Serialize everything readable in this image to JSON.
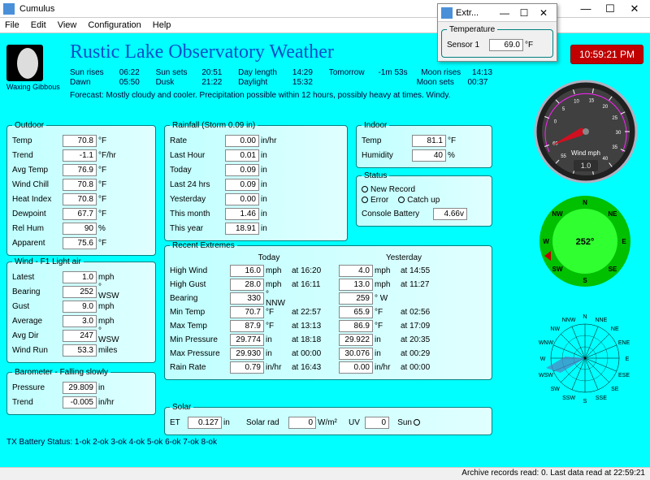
{
  "window": {
    "title": "Cumulus"
  },
  "menu": [
    "File",
    "Edit",
    "View",
    "Configuration",
    "Help"
  ],
  "header": {
    "title": "Rustic Lake Observatory Weather",
    "moon_phase": "Waxing Gibbous",
    "sun": {
      "rises_lbl": "Sun rises",
      "rises": "06:22",
      "sets_lbl": "Sun sets",
      "sets": "20:51",
      "dawn_lbl": "Dawn",
      "dawn": "05:50",
      "dusk_lbl": "Dusk",
      "dusk": "21:22",
      "daylen_lbl": "Day length",
      "daylen": "14:29",
      "daylight_lbl": "Daylight",
      "daylight": "15:32",
      "tomorrow_lbl": "Tomorrow",
      "tomorrow": "-1m 53s",
      "moonrises_lbl": "Moon rises",
      "moonrises": "14:13",
      "moonsets_lbl": "Moon sets",
      "moonsets": "00:37"
    },
    "forecast_lbl": "Forecast:",
    "forecast": "Mostly cloudy and cooler. Precipitation possible within 12 hours, possibly heavy at times. Windy.",
    "clock": "10:59:21 PM"
  },
  "outdoor": {
    "legend": "Outdoor",
    "rows": [
      {
        "lbl": "Temp",
        "val": "70.8",
        "unit": "°F"
      },
      {
        "lbl": "Trend",
        "val": "-1.1",
        "unit": "°F/hr"
      },
      {
        "lbl": "Avg Temp",
        "val": "76.9",
        "unit": "°F"
      },
      {
        "lbl": "Wind Chill",
        "val": "70.8",
        "unit": "°F"
      },
      {
        "lbl": "Heat Index",
        "val": "70.8",
        "unit": "°F"
      },
      {
        "lbl": "Dewpoint",
        "val": "67.7",
        "unit": "°F"
      },
      {
        "lbl": "Rel Hum",
        "val": "90",
        "unit": "%"
      },
      {
        "lbl": "Apparent",
        "val": "75.6",
        "unit": "°F"
      }
    ]
  },
  "wind": {
    "legend": "Wind - F1 Light air",
    "rows": [
      {
        "lbl": "Latest",
        "val": "1.0",
        "unit": "mph"
      },
      {
        "lbl": "Bearing",
        "val": "252",
        "unit": "° WSW"
      },
      {
        "lbl": "Gust",
        "val": "9.0",
        "unit": "mph"
      },
      {
        "lbl": "Average",
        "val": "3.0",
        "unit": "mph"
      },
      {
        "lbl": "Avg Dir",
        "val": "247",
        "unit": "° WSW"
      },
      {
        "lbl": "Wind Run",
        "val": "53.3",
        "unit": "miles"
      }
    ]
  },
  "barometer": {
    "legend": "Barometer - Falling slowly",
    "rows": [
      {
        "lbl": "Pressure",
        "val": "29.809",
        "unit": "in"
      },
      {
        "lbl": "Trend",
        "val": "-0.005",
        "unit": "in/hr"
      }
    ]
  },
  "rainfall": {
    "legend": "Rainfall (Storm 0.09 in)",
    "rows": [
      {
        "lbl": "Rate",
        "val": "0.00",
        "unit": "in/hr"
      },
      {
        "lbl": "Last Hour",
        "val": "0.01",
        "unit": "in"
      },
      {
        "lbl": "Today",
        "val": "0.09",
        "unit": "in"
      },
      {
        "lbl": "Last 24 hrs",
        "val": "0.09",
        "unit": "in"
      },
      {
        "lbl": "Yesterday",
        "val": "0.00",
        "unit": "in"
      },
      {
        "lbl": "This month",
        "val": "1.46",
        "unit": "in"
      },
      {
        "lbl": "This year",
        "val": "18.91",
        "unit": "in"
      }
    ]
  },
  "indoor": {
    "legend": "Indoor",
    "rows": [
      {
        "lbl": "Temp",
        "val": "81.1",
        "unit": "°F"
      },
      {
        "lbl": "Humidity",
        "val": "40",
        "unit": "%"
      }
    ]
  },
  "status": {
    "legend": "Status",
    "new_record": "New Record",
    "error": "Error",
    "catchup": "Catch up",
    "battery_lbl": "Console Battery",
    "battery_val": "4.66v"
  },
  "extremes": {
    "legend": "Recent Extremes",
    "today_hdr": "Today",
    "yest_hdr": "Yesterday",
    "rows": [
      {
        "nm": "High Wind",
        "tv": "16.0",
        "tu": "mph",
        "tt": "at 16:20",
        "yv": "4.0",
        "yu": "mph",
        "yt": "at 14:55"
      },
      {
        "nm": "High Gust",
        "tv": "28.0",
        "tu": "mph",
        "tt": "at 16:11",
        "yv": "13.0",
        "yu": "mph",
        "yt": "at 11:27"
      },
      {
        "nm": "Bearing",
        "tv": "330",
        "tu": "° NNW",
        "tt": "",
        "yv": "259",
        "yu": "° W",
        "yt": ""
      },
      {
        "nm": "Min Temp",
        "tv": "70.7",
        "tu": "°F",
        "tt": "at 22:57",
        "yv": "65.9",
        "yu": "°F",
        "yt": "at 02:56"
      },
      {
        "nm": "Max Temp",
        "tv": "87.9",
        "tu": "°F",
        "tt": "at 13:13",
        "yv": "86.9",
        "yu": "°F",
        "yt": "at 17:09"
      },
      {
        "nm": "Min Pressure",
        "tv": "29.774",
        "tu": "in",
        "tt": "at 18:18",
        "yv": "29.922",
        "yu": "in",
        "yt": "at 20:35"
      },
      {
        "nm": "Max Pressure",
        "tv": "29.930",
        "tu": "in",
        "tt": "at 00:00",
        "yv": "30.076",
        "yu": "in",
        "yt": "at 00:29"
      },
      {
        "nm": "Rain Rate",
        "tv": "0.79",
        "tu": "in/hr",
        "tt": "at 16:43",
        "yv": "0.00",
        "yu": "in/hr",
        "yt": "at 00:00"
      }
    ]
  },
  "solar": {
    "legend": "Solar",
    "et_lbl": "ET",
    "et_val": "0.127",
    "et_unit": "in",
    "rad_lbl": "Solar rad",
    "rad_val": "0",
    "rad_unit": "W/m²",
    "uv_lbl": "UV",
    "uv_val": "0",
    "sun_lbl": "Sun"
  },
  "tx_status": "TX Battery Status:  1-ok  2-ok  3-ok  4-ok  5-ok  6-ok  7-ok  8-ok",
  "statusbar": "Archive records read: 0. Last data read at 22:59:21",
  "popup": {
    "title": "Extr...",
    "temp_legend": "Temperature",
    "sensor_lbl": "Sensor 1",
    "sensor_val": "69.0",
    "sensor_unit": "°F"
  },
  "gauges": {
    "wind": {
      "label": "Wind mph",
      "lcd": "1.0",
      "value_angle": 200,
      "ticks": [
        "0",
        "5",
        "10",
        "15",
        "20",
        "25",
        "30",
        "35",
        "40",
        "45",
        "50",
        "55",
        "60"
      ],
      "bg": "#202020",
      "face": "#404040",
      "rim": "#b0b0c0",
      "needle_color": "#d01020",
      "accent": "#ff20ff",
      "tick_color": "#ffffff",
      "lcd_bg": "#303030",
      "lcd_fg": "#e0e0e0"
    },
    "compass": {
      "bearing": "252°",
      "bearing_angle": 252,
      "face": "#30ff30",
      "ring": "#00c000",
      "pointer": "#c00000",
      "cardinals": [
        "N",
        "NE",
        "E",
        "SE",
        "S",
        "SW",
        "W",
        "NW"
      ]
    },
    "rose": {
      "points": [
        "N",
        "NNE",
        "NE",
        "ENE",
        "E",
        "ESE",
        "SE",
        "SSE",
        "S",
        "SSW",
        "SW",
        "WSW",
        "W",
        "WNW",
        "NW",
        "NNW"
      ],
      "rose_color": "#5080c0",
      "line_color": "#000000"
    }
  }
}
